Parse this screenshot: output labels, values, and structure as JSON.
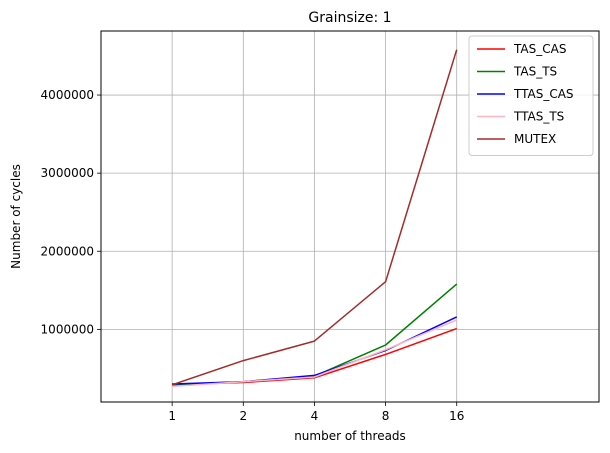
{
  "chart_data": {
    "type": "line",
    "title": "Grainsize: 1",
    "xlabel": "number of threads",
    "ylabel": "Number of cycles",
    "categories": [
      "1",
      "2",
      "4",
      "8",
      "16"
    ],
    "x_positions": [
      0,
      1,
      2,
      3,
      4
    ],
    "xlim": [
      -1,
      6
    ],
    "ylim": [
      70000,
      4820000
    ],
    "yticks": [
      1000000,
      2000000,
      3000000,
      4000000
    ],
    "ytick_labels": [
      "1000000",
      "2000000",
      "3000000",
      "4000000"
    ],
    "grid": true,
    "legend_position": "top-right",
    "series": [
      {
        "name": "TAS_CAS",
        "color": "#ff0000",
        "values": [
          290000,
          320000,
          380000,
          680000,
          1010000
        ]
      },
      {
        "name": "TAS_TS",
        "color": "#008000",
        "values": [
          290000,
          330000,
          400000,
          800000,
          1580000
        ]
      },
      {
        "name": "TTAS_CAS",
        "color": "#0000ff",
        "values": [
          300000,
          330000,
          410000,
          730000,
          1160000
        ]
      },
      {
        "name": "TTAS_TS",
        "color": "#ffb6c1",
        "values": [
          270000,
          330000,
          390000,
          740000,
          1120000
        ]
      },
      {
        "name": "MUTEX",
        "color": "#a52a2a",
        "values": [
          290000,
          600000,
          850000,
          1610000,
          4580000
        ]
      }
    ]
  }
}
